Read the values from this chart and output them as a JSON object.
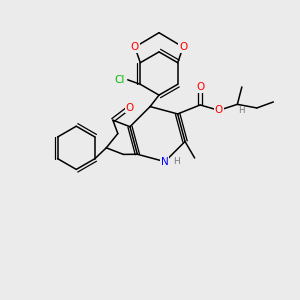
{
  "background_color": "#ebebeb",
  "atom_colors": {
    "O": "#ff0000",
    "N": "#0000ff",
    "Cl": "#00bb00",
    "C": "#000000",
    "H": "#777777"
  },
  "bond_color": "#000000",
  "lw": 1.1
}
